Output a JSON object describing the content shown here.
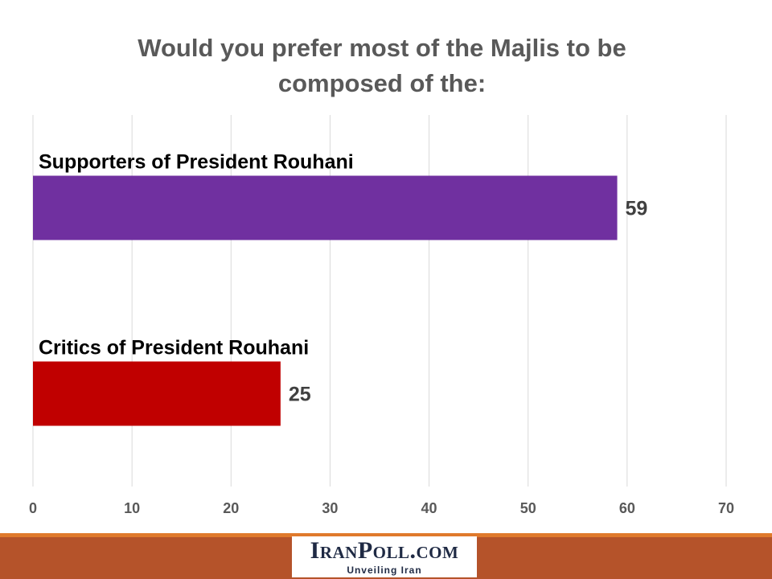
{
  "chart_data": {
    "type": "bar",
    "orientation": "horizontal",
    "title": "Would you prefer most of the Majlis to be composed of the:",
    "categories": [
      "Supporters of President Rouhani",
      "Critics of President Rouhani"
    ],
    "values": [
      59,
      25
    ],
    "colors": [
      "#7030a0",
      "#c00000"
    ],
    "xlim": [
      0,
      70
    ],
    "xticks": [
      0,
      10,
      20,
      30,
      40,
      50,
      60,
      70
    ],
    "grid": "vertical",
    "data_labels": true,
    "legend": "none"
  },
  "footer": {
    "logo_text": "IranPoll.com",
    "tagline": "Unveiling Iran",
    "band_color": "#b5532a",
    "accent_color": "#e07a2c"
  }
}
